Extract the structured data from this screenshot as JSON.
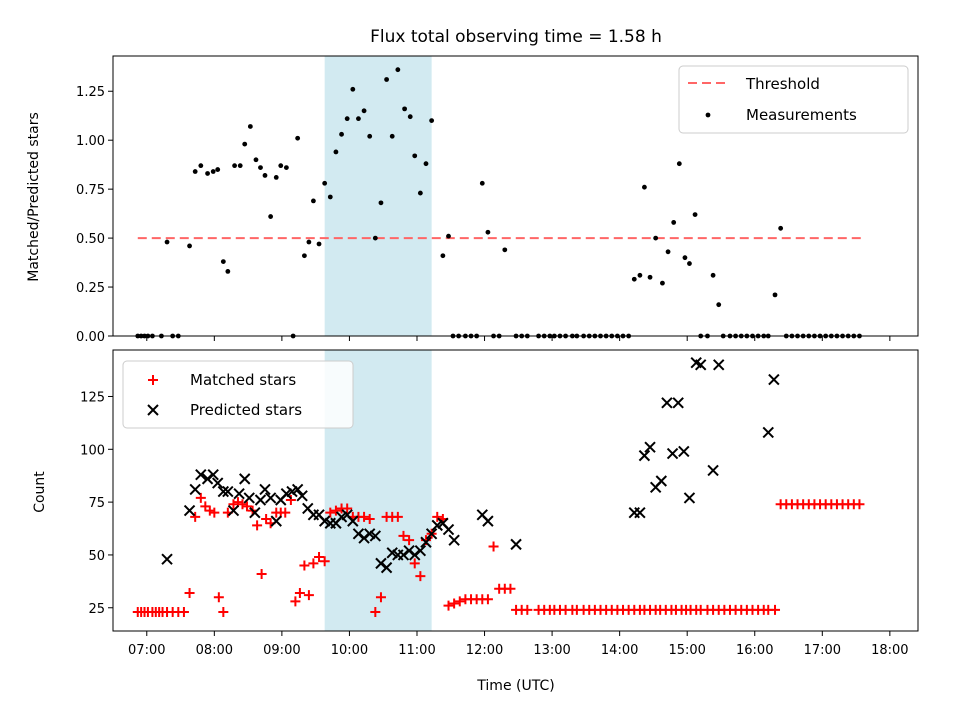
{
  "chart_data": [
    {
      "type": "scatter",
      "title": "Flux total observing time = 1.58 h",
      "xlabel": "",
      "ylabel": "Matched/Predicted stars",
      "xlim": [
        "06:30",
        "18:25"
      ],
      "ylim": [
        0.0,
        1.43
      ],
      "yticks": [
        0.0,
        0.25,
        0.5,
        0.75,
        1.0,
        1.25
      ],
      "ytick_labels": [
        "0.00",
        "0.25",
        "0.50",
        "0.75",
        "1.00",
        "1.25"
      ],
      "xticks": [
        "07:00",
        "08:00",
        "09:00",
        "10:00",
        "11:00",
        "12:00",
        "13:00",
        "14:00",
        "15:00",
        "16:00",
        "17:00",
        "18:00"
      ],
      "show_xtick_labels": false,
      "grid": false,
      "legend": "top-right",
      "highlight_span": {
        "x0": "09:38",
        "x1": "11:13",
        "color": "#add8e6"
      },
      "threshold": {
        "name": "Threshold",
        "y": 0.5,
        "x0": "06:52",
        "x1": "17:37",
        "color": "#ff6666"
      },
      "series": [
        {
          "name": "Measurements",
          "color": "#000000",
          "x": [
            "06:52",
            "06:55",
            "06:58",
            "07:01",
            "07:05",
            "07:13",
            "07:18",
            "07:23",
            "07:28",
            "07:38",
            "07:43",
            "07:48",
            "07:54",
            "07:59",
            "08:03",
            "08:08",
            "08:12",
            "08:18",
            "08:23",
            "08:27",
            "08:32",
            "08:37",
            "08:41",
            "08:45",
            "08:50",
            "08:55",
            "08:59",
            "09:04",
            "09:10",
            "09:14",
            "09:20",
            "09:24",
            "09:28",
            "09:33",
            "09:38",
            "09:43",
            "09:48",
            "09:53",
            "09:58",
            "10:03",
            "10:08",
            "10:13",
            "10:18",
            "10:23",
            "10:28",
            "10:33",
            "10:38",
            "10:43",
            "10:49",
            "10:54",
            "10:58",
            "11:03",
            "11:08",
            "11:13",
            "11:23",
            "11:28",
            "11:32",
            "11:37",
            "11:43",
            "11:48",
            "11:53",
            "11:58",
            "12:03",
            "12:08",
            "12:13",
            "12:18",
            "12:28",
            "12:33",
            "12:38",
            "12:48",
            "12:53",
            "12:58",
            "13:02",
            "13:07",
            "13:12",
            "13:18",
            "13:22",
            "13:28",
            "13:33",
            "13:38",
            "13:43",
            "13:48",
            "13:53",
            "13:58",
            "14:03",
            "14:08",
            "14:13",
            "14:18",
            "14:22",
            "14:27",
            "14:32",
            "14:38",
            "14:43",
            "14:48",
            "14:53",
            "14:58",
            "15:02",
            "15:07",
            "15:12",
            "15:18",
            "15:23",
            "15:28",
            "15:32",
            "15:38",
            "15:43",
            "15:48",
            "15:53",
            "15:58",
            "16:03",
            "16:08",
            "16:12",
            "16:18",
            "16:23",
            "16:28",
            "16:33",
            "16:38",
            "16:43",
            "16:48",
            "16:53",
            "16:58",
            "17:03",
            "17:08",
            "17:13",
            "17:18",
            "17:23",
            "17:28",
            "17:33"
          ],
          "y": [
            0.0,
            0.0,
            0.0,
            0.0,
            0.0,
            0.0,
            0.48,
            0.0,
            0.0,
            0.46,
            0.84,
            0.87,
            0.83,
            0.84,
            0.85,
            0.38,
            0.33,
            0.87,
            0.87,
            0.98,
            1.07,
            0.9,
            0.86,
            0.82,
            0.61,
            0.81,
            0.87,
            0.86,
            0.0,
            1.01,
            0.41,
            0.48,
            0.69,
            0.47,
            0.78,
            0.71,
            0.94,
            1.03,
            1.11,
            1.26,
            1.11,
            1.15,
            1.02,
            0.5,
            0.68,
            1.31,
            1.02,
            1.36,
            1.16,
            1.12,
            0.92,
            0.73,
            0.88,
            1.1,
            0.41,
            0.51,
            0.0,
            0.0,
            0.0,
            0.0,
            0.0,
            0.78,
            0.53,
            0.0,
            0.0,
            0.44,
            0.0,
            0.0,
            0.0,
            0.0,
            0.0,
            0.0,
            0.0,
            0.0,
            0.0,
            0.0,
            0.0,
            0.0,
            0.0,
            0.0,
            0.0,
            0.0,
            0.0,
            0.0,
            0.0,
            0.0,
            0.29,
            0.31,
            0.76,
            0.3,
            0.5,
            0.27,
            0.43,
            0.58,
            0.88,
            0.4,
            0.37,
            0.62,
            0.0,
            0.0,
            0.31,
            0.16,
            0.0,
            0.0,
            0.0,
            0.0,
            0.0,
            0.0,
            0.0,
            0.0,
            0.0,
            0.21,
            0.55,
            0.0,
            0.0,
            0.0,
            0.0,
            0.0,
            0.0,
            0.0,
            0.0,
            0.0,
            0.0,
            0.0,
            0.0,
            0.0,
            0.0
          ]
        }
      ]
    },
    {
      "type": "scatter",
      "title": "",
      "xlabel": "Time (UTC)",
      "ylabel": "Count",
      "xlim": [
        "06:30",
        "18:25"
      ],
      "ylim": [
        14,
        147
      ],
      "yticks": [
        25,
        50,
        75,
        100,
        125
      ],
      "ytick_labels": [
        "25",
        "50",
        "75",
        "100",
        "125"
      ],
      "xticks": [
        "07:00",
        "08:00",
        "09:00",
        "10:00",
        "11:00",
        "12:00",
        "13:00",
        "14:00",
        "15:00",
        "16:00",
        "17:00",
        "18:00"
      ],
      "xtick_labels": [
        "07:00",
        "08:00",
        "09:00",
        "10:00",
        "11:00",
        "12:00",
        "13:00",
        "14:00",
        "15:00",
        "16:00",
        "17:00",
        "18:00"
      ],
      "grid": false,
      "legend": "top-left",
      "highlight_span": {
        "x0": "09:38",
        "x1": "11:13",
        "color": "#add8e6"
      },
      "series": [
        {
          "name": "Matched stars",
          "marker": "plus",
          "color": "#ff0000",
          "x": [
            "06:52",
            "06:55",
            "06:58",
            "07:01",
            "07:05",
            "07:08",
            "07:11",
            "07:14",
            "07:18",
            "07:23",
            "07:28",
            "07:33",
            "07:38",
            "07:43",
            "07:48",
            "07:52",
            "07:56",
            "08:00",
            "08:04",
            "08:08",
            "08:12",
            "08:17",
            "08:21",
            "08:25",
            "08:29",
            "08:34",
            "08:38",
            "08:42",
            "08:46",
            "08:50",
            "08:55",
            "08:59",
            "09:03",
            "09:08",
            "09:12",
            "09:16",
            "09:20",
            "09:24",
            "09:28",
            "09:33",
            "09:38",
            "09:43",
            "09:48",
            "09:53",
            "09:58",
            "10:03",
            "10:08",
            "10:13",
            "10:18",
            "10:23",
            "10:28",
            "10:33",
            "10:38",
            "10:43",
            "10:48",
            "10:53",
            "10:58",
            "11:03",
            "11:08",
            "11:13",
            "11:18",
            "11:23",
            "11:28",
            "11:33",
            "11:38",
            "11:43",
            "11:48",
            "11:53",
            "11:58",
            "12:03",
            "12:08",
            "12:13",
            "12:18",
            "12:23",
            "12:28",
            "12:33",
            "12:38",
            "12:48",
            "12:53",
            "12:58",
            "13:02",
            "13:07",
            "13:12",
            "13:18",
            "13:22",
            "13:28",
            "13:33",
            "13:38",
            "13:43",
            "13:48",
            "13:53",
            "13:58",
            "14:03",
            "14:08",
            "14:13",
            "14:18",
            "14:22",
            "14:27",
            "14:32",
            "14:36",
            "14:41",
            "14:46",
            "14:50",
            "14:55",
            "14:59",
            "15:03",
            "15:08",
            "15:12",
            "15:18",
            "15:23",
            "15:28",
            "15:33",
            "15:38",
            "15:43",
            "15:48",
            "15:53",
            "15:58",
            "16:03",
            "16:08",
            "16:12",
            "16:18",
            "16:23",
            "16:28",
            "16:33",
            "16:38",
            "16:43",
            "16:48",
            "16:53",
            "16:58",
            "17:03",
            "17:08",
            "17:13",
            "17:18",
            "17:23",
            "17:28",
            "17:33"
          ],
          "y": [
            23,
            23,
            23,
            23,
            23,
            23,
            23,
            23,
            23,
            23,
            23,
            23,
            32,
            68,
            77,
            73,
            71,
            70,
            30,
            23,
            70,
            74,
            75,
            74,
            73,
            71,
            64,
            41,
            67,
            65,
            70,
            70,
            70,
            76,
            28,
            32,
            45,
            31,
            46,
            49,
            47,
            70,
            71,
            72,
            72,
            68,
            68,
            68,
            67,
            23,
            30,
            68,
            68,
            68,
            59,
            57,
            46,
            40,
            57,
            60,
            68,
            67,
            26,
            27,
            28,
            29,
            29,
            29,
            29,
            29,
            54,
            34,
            34,
            34,
            24,
            24,
            24,
            24,
            24,
            24,
            24,
            24,
            24,
            24,
            24,
            24,
            24,
            24,
            24,
            24,
            24,
            24,
            24,
            24,
            24,
            24,
            24,
            24,
            24,
            24,
            24,
            24,
            24,
            24,
            24,
            24,
            24,
            24,
            24,
            24,
            24,
            24,
            24,
            24,
            24,
            24,
            24,
            24,
            24,
            24,
            24,
            74,
            74,
            74,
            74,
            74,
            74,
            74,
            74,
            74,
            74,
            74,
            74,
            74,
            74,
            74
          ]
        },
        {
          "name": "Predicted stars",
          "marker": "x",
          "color": "#000000",
          "x": [
            "07:18",
            "07:38",
            "07:43",
            "07:48",
            "07:54",
            "07:59",
            "08:03",
            "08:08",
            "08:12",
            "08:17",
            "08:22",
            "08:27",
            "08:31",
            "08:36",
            "08:41",
            "08:45",
            "08:50",
            "08:55",
            "08:59",
            "09:04",
            "09:09",
            "09:14",
            "09:18",
            "09:23",
            "09:28",
            "09:33",
            "09:38",
            "09:43",
            "09:48",
            "09:53",
            "09:58",
            "10:03",
            "10:08",
            "10:13",
            "10:18",
            "10:23",
            "10:28",
            "10:33",
            "10:38",
            "10:43",
            "10:48",
            "10:53",
            "10:58",
            "11:03",
            "11:08",
            "11:13",
            "11:18",
            "11:23",
            "11:28",
            "11:33",
            "11:58",
            "12:03",
            "12:28",
            "14:13",
            "14:18",
            "14:22",
            "14:27",
            "14:32",
            "14:37",
            "14:42",
            "14:47",
            "14:52",
            "14:57",
            "15:02",
            "15:08",
            "15:12",
            "15:23",
            "15:28",
            "16:12",
            "16:17"
          ],
          "y": [
            48,
            71,
            81,
            88,
            86,
            88,
            84,
            80,
            80,
            71,
            79,
            86,
            77,
            70,
            76,
            81,
            77,
            66,
            76,
            79,
            80,
            81,
            78,
            72,
            69,
            69,
            66,
            65,
            65,
            68,
            69,
            66,
            60,
            58,
            60,
            59,
            46,
            44,
            51,
            50,
            50,
            52,
            50,
            52,
            56,
            60,
            64,
            65,
            62,
            57,
            69,
            66,
            55,
            70,
            70,
            97,
            101,
            82,
            85,
            122,
            98,
            122,
            99,
            77,
            141,
            140,
            90,
            140,
            108,
            133
          ]
        }
      ]
    }
  ]
}
